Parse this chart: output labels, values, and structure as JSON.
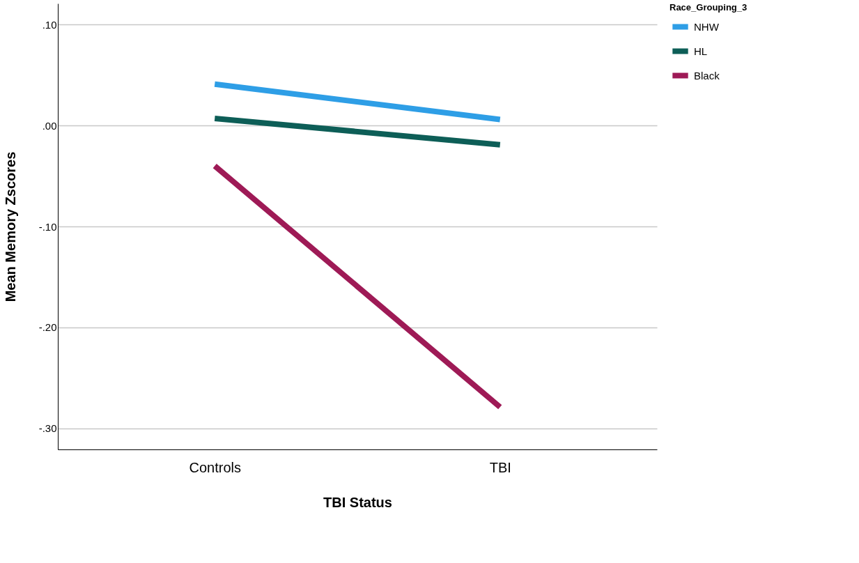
{
  "chart_data": {
    "type": "line",
    "xlabel": "TBI Status",
    "ylabel": "Mean Memory Zscores",
    "legend_title": "Race_Grouping_3",
    "categories": [
      "Controls",
      "TBI"
    ],
    "series": [
      {
        "name": "NHW",
        "color": "#2e9ee6",
        "values": [
          0.041,
          0.006
        ]
      },
      {
        "name": "HL",
        "color": "#0d5e57",
        "values": [
          0.007,
          -0.019
        ]
      },
      {
        "name": "Black",
        "color": "#9e1a56",
        "values": [
          -0.04,
          -0.279
        ]
      }
    ],
    "ylim": [
      -0.321,
      0.121
    ],
    "yticks": [
      {
        "value": -0.3,
        "label": "-.30"
      },
      {
        "value": -0.2,
        "label": "-.20"
      },
      {
        "value": -0.1,
        "label": "-.10"
      },
      {
        "value": 0,
        "label": ".00"
      },
      {
        "value": 0.1,
        "label": ".10"
      }
    ],
    "grid": "y",
    "legend": "top right",
    "marker": "none",
    "line_style": "solid"
  }
}
